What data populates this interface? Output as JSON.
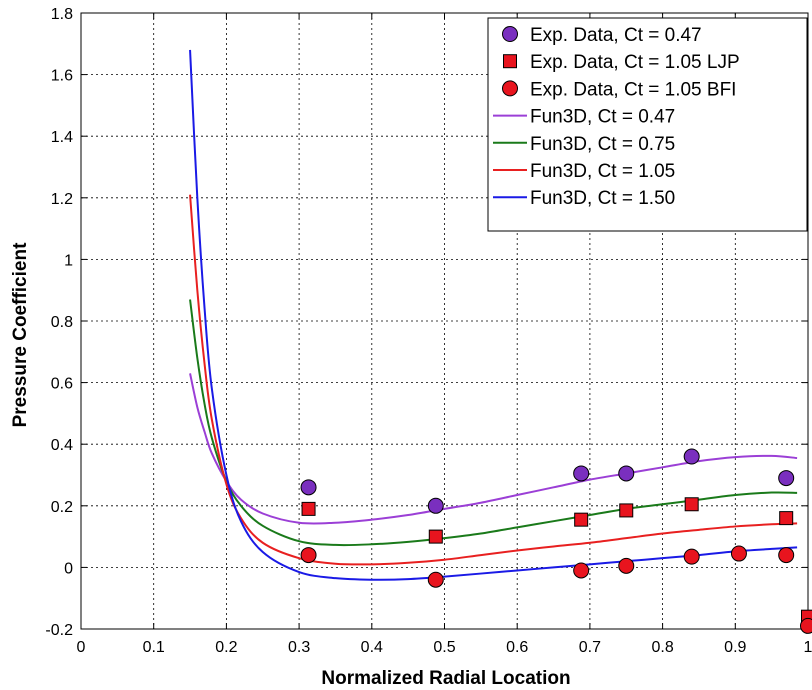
{
  "chart_data": {
    "type": "line",
    "xlabel": "Normalized Radial Location",
    "ylabel": "Pressure Coefficient",
    "xlim": [
      0,
      1
    ],
    "ylim": [
      -0.2,
      1.8
    ],
    "xticks": [
      "0",
      "0.1",
      "0.2",
      "0.3",
      "0.4",
      "0.5",
      "0.6",
      "0.7",
      "0.8",
      "0.9",
      "1"
    ],
    "yticks": [
      "-0.2",
      "0",
      "0.2",
      "0.4",
      "0.6",
      "0.8",
      "1",
      "1.2",
      "1.4",
      "1.6",
      "1.8"
    ],
    "grid": true,
    "legend_position": "top-right",
    "series": [
      {
        "name": "Exp. Data, Ct = 0.47",
        "kind": "scatter",
        "marker": "circle",
        "color": "#7a2fbf",
        "x": [
          0.313,
          0.488,
          0.688,
          0.75,
          0.84,
          0.97
        ],
        "y": [
          0.26,
          0.2,
          0.305,
          0.305,
          0.36,
          0.29
        ]
      },
      {
        "name": "Exp. Data, Ct = 1.05 LJP",
        "kind": "scatter",
        "marker": "square",
        "color": "#e8141e",
        "x": [
          0.313,
          0.488,
          0.688,
          0.75,
          0.84,
          0.97,
          1.0
        ],
        "y": [
          0.19,
          0.1,
          0.155,
          0.185,
          0.205,
          0.16,
          -0.16
        ]
      },
      {
        "name": "Exp. Data, Ct = 1.05 BFI",
        "kind": "scatter",
        "marker": "circle",
        "color": "#e8141e",
        "x": [
          0.313,
          0.488,
          0.688,
          0.75,
          0.84,
          0.905,
          0.97,
          1.0
        ],
        "y": [
          0.04,
          -0.04,
          -0.01,
          0.005,
          0.035,
          0.045,
          0.04,
          -0.19
        ]
      },
      {
        "name": "Fun3D, Ct = 0.47",
        "kind": "line",
        "color": "#9b3fd6",
        "x": [
          0.15,
          0.16,
          0.17,
          0.18,
          0.2,
          0.22,
          0.25,
          0.3,
          0.35,
          0.4,
          0.45,
          0.5,
          0.55,
          0.6,
          0.65,
          0.7,
          0.75,
          0.8,
          0.85,
          0.9,
          0.95,
          0.985
        ],
        "y": [
          0.63,
          0.52,
          0.44,
          0.37,
          0.28,
          0.22,
          0.175,
          0.145,
          0.145,
          0.155,
          0.17,
          0.19,
          0.21,
          0.235,
          0.26,
          0.285,
          0.305,
          0.325,
          0.345,
          0.358,
          0.362,
          0.355
        ]
      },
      {
        "name": "Fun3D, Ct = 0.75",
        "kind": "line",
        "color": "#1a7a1a",
        "x": [
          0.15,
          0.16,
          0.17,
          0.18,
          0.2,
          0.22,
          0.25,
          0.3,
          0.35,
          0.4,
          0.45,
          0.5,
          0.55,
          0.6,
          0.65,
          0.7,
          0.75,
          0.8,
          0.85,
          0.9,
          0.95,
          0.985
        ],
        "y": [
          0.87,
          0.68,
          0.53,
          0.42,
          0.28,
          0.2,
          0.135,
          0.085,
          0.073,
          0.075,
          0.083,
          0.095,
          0.11,
          0.13,
          0.15,
          0.17,
          0.19,
          0.205,
          0.22,
          0.235,
          0.243,
          0.242
        ]
      },
      {
        "name": "Fun3D, Ct = 1.05",
        "kind": "line",
        "color": "#e82020",
        "x": [
          0.15,
          0.16,
          0.17,
          0.18,
          0.2,
          0.22,
          0.25,
          0.3,
          0.35,
          0.4,
          0.45,
          0.5,
          0.55,
          0.6,
          0.65,
          0.7,
          0.75,
          0.8,
          0.85,
          0.9,
          0.95,
          0.985
        ],
        "y": [
          1.21,
          0.9,
          0.66,
          0.48,
          0.27,
          0.16,
          0.08,
          0.03,
          0.012,
          0.01,
          0.015,
          0.025,
          0.04,
          0.055,
          0.068,
          0.08,
          0.095,
          0.11,
          0.122,
          0.133,
          0.14,
          0.143
        ]
      },
      {
        "name": "Fun3D, Ct = 1.50",
        "kind": "line",
        "color": "#1a1ae6",
        "x": [
          0.15,
          0.16,
          0.17,
          0.18,
          0.2,
          0.22,
          0.25,
          0.3,
          0.35,
          0.4,
          0.45,
          0.5,
          0.55,
          0.6,
          0.65,
          0.7,
          0.75,
          0.8,
          0.85,
          0.9,
          0.95,
          0.985
        ],
        "y": [
          1.68,
          1.2,
          0.84,
          0.58,
          0.3,
          0.15,
          0.05,
          -0.015,
          -0.035,
          -0.04,
          -0.038,
          -0.03,
          -0.02,
          -0.01,
          0.0,
          0.01,
          0.02,
          0.03,
          0.04,
          0.052,
          0.06,
          0.065
        ]
      }
    ]
  }
}
